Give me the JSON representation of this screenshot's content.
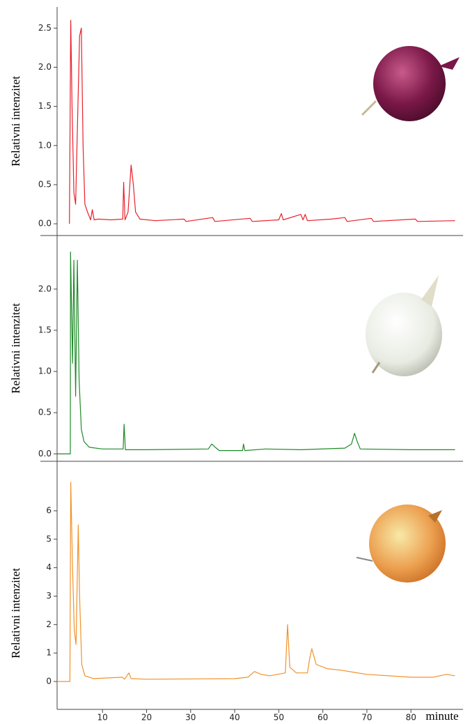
{
  "chart_data": [
    {
      "type": "line",
      "ylabel": "Relativni intenzitet",
      "xlim": [
        -0.3,
        91.5
      ],
      "ylim": [
        -0.15,
        2.77
      ],
      "yticks": [
        {
          "value": 0,
          "label": "0.0"
        },
        {
          "value": 0.5,
          "label": "0.5"
        },
        {
          "value": 1,
          "label": "1.0"
        },
        {
          "value": 1.5,
          "label": "1.5"
        },
        {
          "value": 2,
          "label": "2.0"
        },
        {
          "value": 2.5,
          "label": "2.5"
        }
      ],
      "series": [
        {
          "color": "#e8202a",
          "x": [
            2.5,
            2.8,
            3.1,
            3.5,
            3.9,
            4.3,
            4.8,
            5.2,
            5.6,
            6.0,
            6.6,
            7.3,
            7.7,
            8.1,
            9,
            12,
            14.6,
            14.8,
            15.1,
            15.8,
            16.5,
            17.0,
            17.5,
            18.5,
            22,
            28.5,
            29,
            35,
            35.5,
            43.5,
            44,
            50,
            50.6,
            51,
            55,
            55.5,
            56,
            56.5,
            62,
            65,
            65.5,
            71,
            71.5,
            81,
            81.5,
            90
          ],
          "values": [
            0,
            2.6,
            1.5,
            0.4,
            0.25,
            1.2,
            2.4,
            2.5,
            1.0,
            0.25,
            0.15,
            0.05,
            0.18,
            0.05,
            0.06,
            0.05,
            0.06,
            0.53,
            0.05,
            0.15,
            0.75,
            0.5,
            0.15,
            0.06,
            0.04,
            0.06,
            0.03,
            0.08,
            0.03,
            0.07,
            0.03,
            0.05,
            0.13,
            0.05,
            0.12,
            0.05,
            0.12,
            0.04,
            0.06,
            0.08,
            0.03,
            0.07,
            0.03,
            0.06,
            0.03,
            0.04
          ]
        }
      ]
    },
    {
      "type": "line",
      "ylabel": "Relativni intenzitet",
      "xlim": [
        -0.3,
        91.5
      ],
      "ylim": [
        -0.09,
        2.65
      ],
      "yticks": [
        {
          "value": 0,
          "label": "0.0"
        },
        {
          "value": 0.5,
          "label": "0.5"
        },
        {
          "value": 1,
          "label": "1.0"
        },
        {
          "value": 1.5,
          "label": "1.5"
        },
        {
          "value": 2,
          "label": "2.0"
        }
      ],
      "series": [
        {
          "color": "#1e8a28",
          "x": [
            -0.3,
            2.7,
            2.75,
            3.2,
            3.5,
            3.9,
            4.3,
            4.7,
            5.2,
            5.8,
            7,
            10,
            14.7,
            14.9,
            15.2,
            20,
            34,
            34.8,
            35.6,
            36.5,
            41.8,
            42,
            42.3,
            47,
            55,
            65,
            66.5,
            67.2,
            67.8,
            68.5,
            80,
            90
          ],
          "values": [
            0,
            0,
            2.45,
            1.1,
            2.35,
            0.7,
            2.35,
            0.9,
            0.3,
            0.15,
            0.08,
            0.06,
            0.06,
            0.36,
            0.05,
            0.05,
            0.06,
            0.12,
            0.08,
            0.04,
            0.04,
            0.12,
            0.04,
            0.06,
            0.05,
            0.07,
            0.12,
            0.25,
            0.15,
            0.06,
            0.05,
            0.05
          ]
        }
      ]
    },
    {
      "type": "line",
      "ylabel": "Relativni intenzitet",
      "xlabel": "minute",
      "xlim": [
        -0.3,
        91.5
      ],
      "ylim": [
        -0.98,
        7.74
      ],
      "xticks": [
        10,
        20,
        30,
        40,
        50,
        60,
        70,
        80
      ],
      "yticks": [
        0,
        1,
        2,
        3,
        4,
        5,
        6
      ],
      "series": [
        {
          "color": "#f0922a",
          "x": [
            -0.3,
            2.6,
            2.8,
            3.2,
            3.6,
            4.0,
            4.5,
            4.8,
            5.3,
            6,
            8,
            14.5,
            15,
            16,
            16.5,
            20,
            40,
            43,
            44.5,
            46,
            48,
            51.5,
            52,
            52.5,
            54,
            56.5,
            57,
            57.5,
            58.5,
            61,
            64,
            70,
            80,
            85,
            88,
            90
          ],
          "values": [
            0,
            0,
            7.0,
            4,
            1.8,
            1.3,
            5.5,
            3,
            0.6,
            0.2,
            0.1,
            0.15,
            0.08,
            0.3,
            0.1,
            0.08,
            0.1,
            0.15,
            0.35,
            0.25,
            0.2,
            0.3,
            2.0,
            0.5,
            0.3,
            0.3,
            0.8,
            1.15,
            0.6,
            0.45,
            0.4,
            0.25,
            0.15,
            0.15,
            0.25,
            0.2
          ]
        }
      ]
    }
  ]
}
